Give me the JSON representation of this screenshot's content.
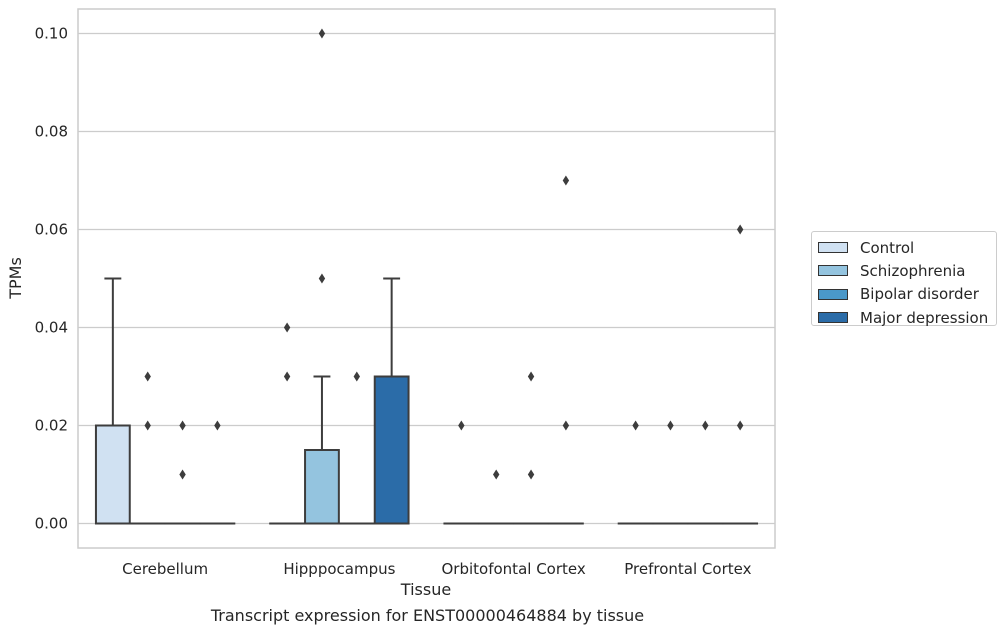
{
  "caption": "Transcript expression for ENST00000464884 by tissue",
  "chart_data": {
    "type": "box",
    "title": "",
    "xlabel": "Tissue",
    "ylabel": "TPMs",
    "ylim": [
      -0.005,
      0.105
    ],
    "yticks": [
      "0.00",
      "0.02",
      "0.04",
      "0.06",
      "0.08",
      "0.10"
    ],
    "ytick_values": [
      0,
      0.02,
      0.04,
      0.06,
      0.08,
      0.1
    ],
    "grid": "horizontal",
    "legend_position": "right",
    "categories": [
      "Cerebellum",
      "Hipppocampus",
      "Orbitofontal Cortex",
      "Prefrontal Cortex"
    ],
    "series": [
      {
        "name": "Control",
        "color": "#d0e1f2",
        "boxes": [
          {
            "q1": 0,
            "median": 0,
            "q3": 0.02,
            "whisker_low": 0,
            "whisker_high": 0.05,
            "outliers": []
          },
          {
            "q1": 0,
            "median": 0,
            "q3": 0,
            "whisker_low": 0,
            "whisker_high": 0,
            "outliers": [
              0.03,
              0.04
            ]
          },
          {
            "q1": 0,
            "median": 0,
            "q3": 0,
            "whisker_low": 0,
            "whisker_high": 0,
            "outliers": [
              0.02
            ]
          },
          {
            "q1": 0,
            "median": 0,
            "q3": 0,
            "whisker_low": 0,
            "whisker_high": 0,
            "outliers": [
              0.02
            ]
          }
        ]
      },
      {
        "name": "Schizophrenia",
        "color": "#94c4df",
        "boxes": [
          {
            "q1": 0,
            "median": 0,
            "q3": 0,
            "whisker_low": 0,
            "whisker_high": 0,
            "outliers": [
              0.02,
              0.03
            ]
          },
          {
            "q1": 0,
            "median": 0,
            "q3": 0.015,
            "whisker_low": 0,
            "whisker_high": 0.03,
            "outliers": [
              0.05,
              0.1
            ]
          },
          {
            "q1": 0,
            "median": 0,
            "q3": 0,
            "whisker_low": 0,
            "whisker_high": 0,
            "outliers": [
              0.01
            ]
          },
          {
            "q1": 0,
            "median": 0,
            "q3": 0,
            "whisker_low": 0,
            "whisker_high": 0,
            "outliers": [
              0.02
            ]
          }
        ]
      },
      {
        "name": "Bipolar disorder",
        "color": "#4a98c9",
        "boxes": [
          {
            "q1": 0,
            "median": 0,
            "q3": 0,
            "whisker_low": 0,
            "whisker_high": 0,
            "outliers": [
              0.01,
              0.02
            ]
          },
          {
            "q1": 0,
            "median": 0,
            "q3": 0,
            "whisker_low": 0,
            "whisker_high": 0,
            "outliers": [
              0.03
            ]
          },
          {
            "q1": 0,
            "median": 0,
            "q3": 0,
            "whisker_low": 0,
            "whisker_high": 0,
            "outliers": [
              0.01,
              0.03
            ]
          },
          {
            "q1": 0,
            "median": 0,
            "q3": 0,
            "whisker_low": 0,
            "whisker_high": 0,
            "outliers": [
              0.02
            ]
          }
        ]
      },
      {
        "name": "Major depression",
        "color": "#2b6ca8",
        "boxes": [
          {
            "q1": 0,
            "median": 0,
            "q3": 0,
            "whisker_low": 0,
            "whisker_high": 0,
            "outliers": [
              0.02
            ]
          },
          {
            "q1": 0,
            "median": 0,
            "q3": 0.03,
            "whisker_low": 0,
            "whisker_high": 0.05,
            "outliers": []
          },
          {
            "q1": 0,
            "median": 0,
            "q3": 0,
            "whisker_low": 0,
            "whisker_high": 0,
            "outliers": [
              0.02,
              0.07
            ]
          },
          {
            "q1": 0,
            "median": 0,
            "q3": 0,
            "whisker_low": 0,
            "whisker_high": 0,
            "outliers": [
              0.02,
              0.06
            ]
          }
        ]
      }
    ]
  }
}
